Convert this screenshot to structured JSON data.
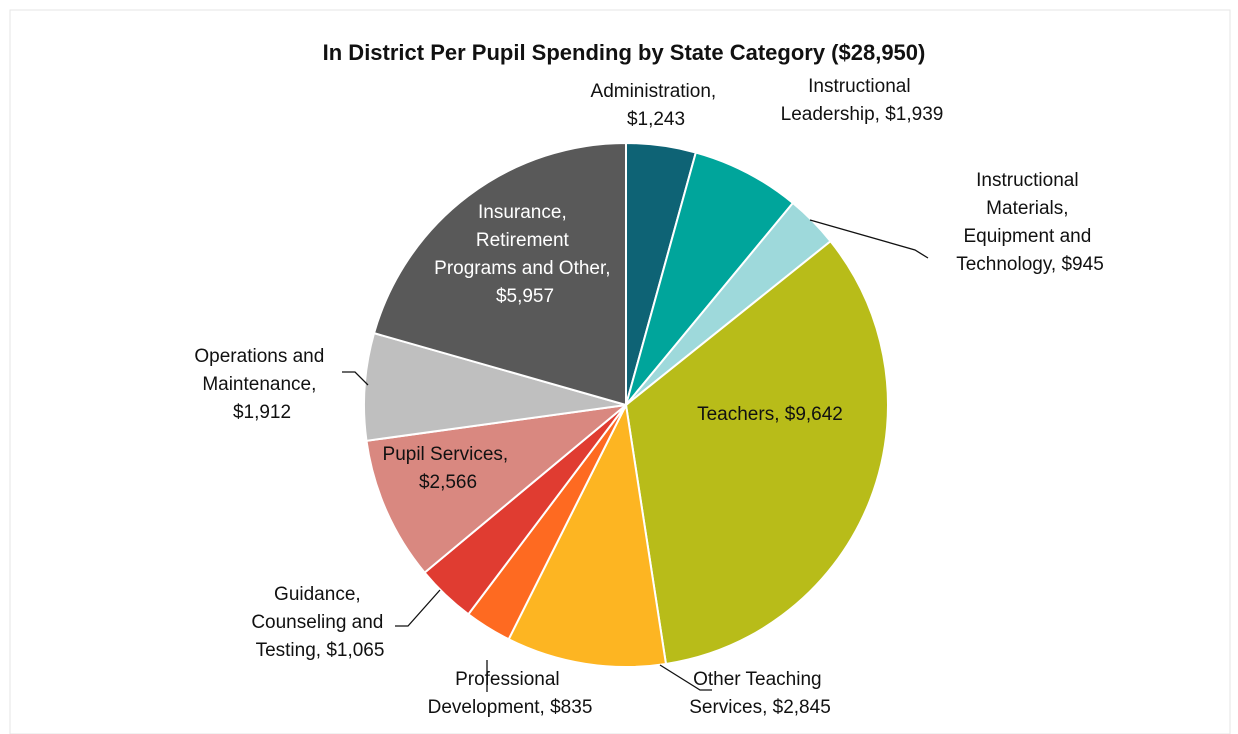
{
  "chart_data": {
    "type": "pie",
    "title": "In District Per Pupil Spending by State Category ($28,950)",
    "values": [
      1243,
      1939,
      945,
      9642,
      2845,
      835,
      1065,
      2566,
      1912,
      5957
    ],
    "value_labels": [
      "Administration, $1,243",
      "Instructional Leadership, $1,939",
      "Instructional Materials, Equipment and Technology, $945",
      "Teachers, $9,642",
      "Other Teaching Services, $2,845",
      "Professional Development, $835",
      "Guidance, Counseling and Testing, $1,065",
      "Pupil Services, $2,566",
      "Operations and Maintenance, $1,912",
      "Insurance, Retirement Programs and Other, $5,957"
    ],
    "colors": [
      "#0e6375",
      "#00a59b",
      "#9ed9db",
      "#b8bc19",
      "#fdb522",
      "#fe6a21",
      "#e03c31",
      "#d98880",
      "#bfbfbf",
      "#595959"
    ]
  }
}
